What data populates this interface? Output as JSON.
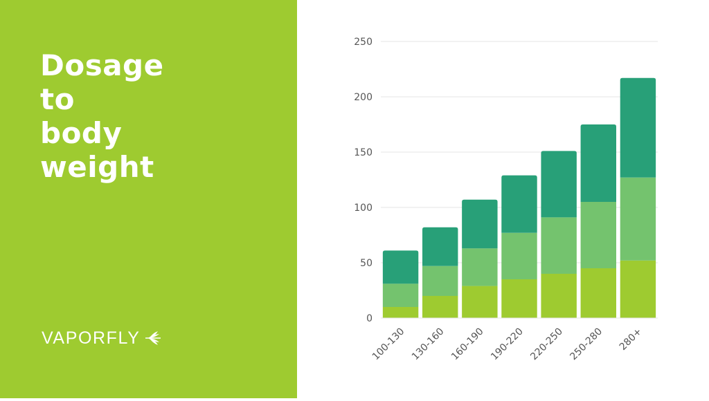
{
  "slide": {
    "title_lines": [
      "Dosage",
      "to",
      "body",
      "weight"
    ],
    "logo_text": "VAPORFLY",
    "panel_color": "#9ecb30",
    "logo_icon": "leaf-icon"
  },
  "chart_data": {
    "type": "bar",
    "stacked": true,
    "categories": [
      "100-130",
      "130-160",
      "160-190",
      "190-220",
      "220-250",
      "250-280",
      "280+"
    ],
    "series": [
      {
        "values": [
          10,
          20,
          29,
          35,
          40,
          45,
          52
        ],
        "color": "#9ecb30"
      },
      {
        "values": [
          21,
          27,
          34,
          42,
          51,
          60,
          75
        ],
        "color": "#74c36e"
      },
      {
        "values": [
          30,
          35,
          44,
          52,
          60,
          70,
          90
        ],
        "color": "#28a078"
      }
    ],
    "title": "",
    "xlabel": "",
    "ylabel": "",
    "ylim": [
      0,
      250
    ],
    "yticks": [
      0,
      50,
      100,
      150,
      200,
      250
    ],
    "grid": true,
    "legend": "none"
  }
}
